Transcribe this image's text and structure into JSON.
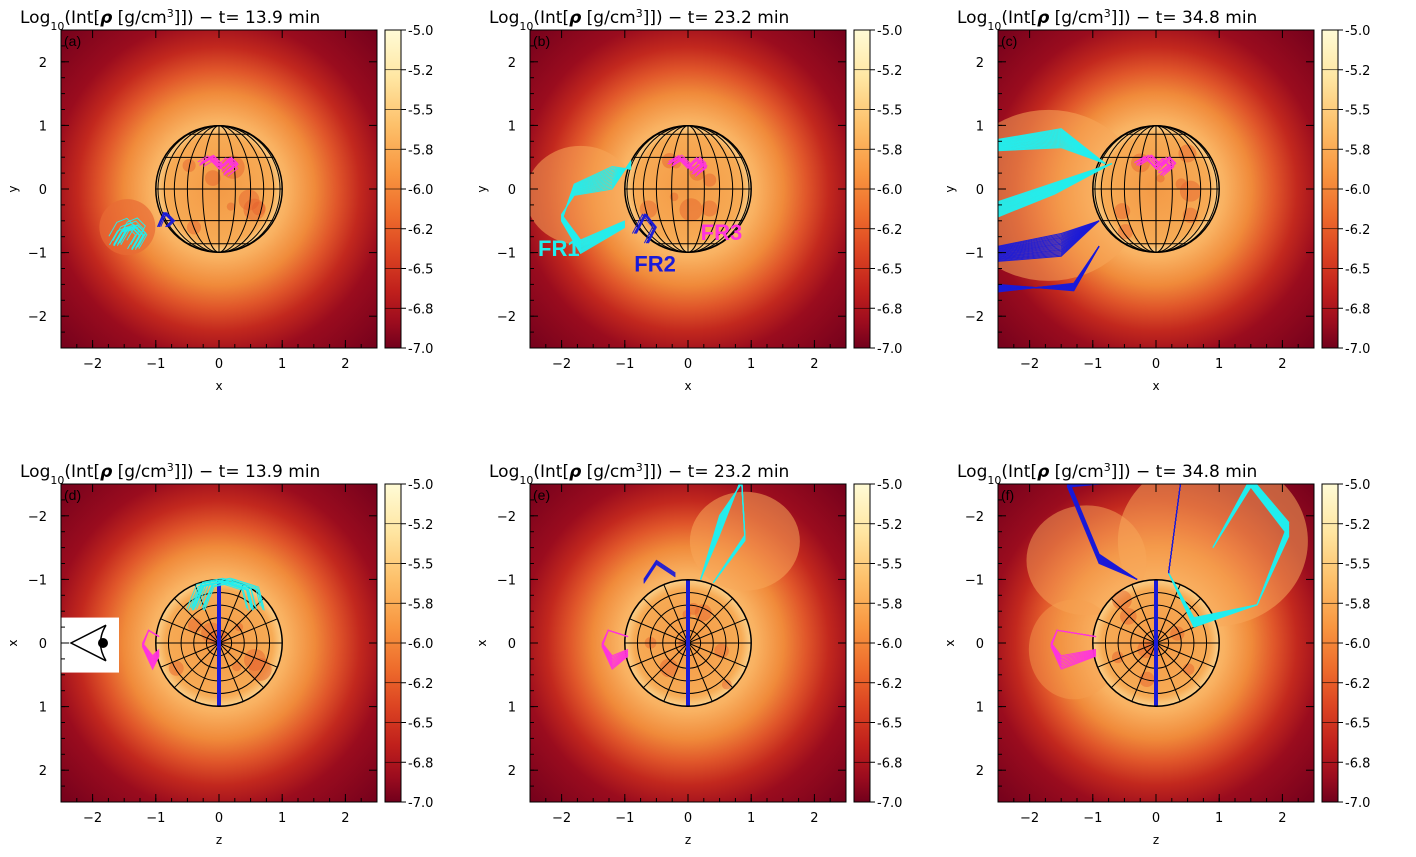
{
  "colorbar": {
    "ticks": [
      "-5.0",
      "-5.2",
      "-5.5",
      "-5.8",
      "-6.0",
      "-6.2",
      "-6.5",
      "-6.8",
      "-7.0"
    ],
    "colors": [
      "#fffbd0",
      "#ffe39a",
      "#fdbd66",
      "#f7963d",
      "#ef6f2c",
      "#e04a22",
      "#c8231c",
      "#a00f1e",
      "#72001c"
    ]
  },
  "axis_ticks": {
    "x": [
      "−2",
      "−1",
      "0",
      "1",
      "2"
    ],
    "y_top": [
      "2",
      "1",
      "0",
      "−1",
      "−2"
    ],
    "y_bottom": [
      "−2",
      "−1",
      "0",
      "1",
      "2"
    ]
  },
  "panels": [
    {
      "label": "(a)",
      "title_time": "13.9",
      "xlabel": "x",
      "ylabel": "y",
      "view": "top",
      "stage": 0
    },
    {
      "label": "(b)",
      "title_time": "23.2",
      "xlabel": "x",
      "ylabel": "y",
      "view": "top",
      "stage": 1
    },
    {
      "label": "(c)",
      "title_time": "34.8",
      "xlabel": "x",
      "ylabel": "y",
      "view": "top",
      "stage": 2
    },
    {
      "label": "(d)",
      "title_time": "13.9",
      "xlabel": "z",
      "ylabel": "x",
      "view": "side",
      "stage": 0
    },
    {
      "label": "(e)",
      "title_time": "23.2",
      "xlabel": "z",
      "ylabel": "x",
      "view": "side",
      "stage": 1
    },
    {
      "label": "(f)",
      "title_time": "34.8",
      "xlabel": "z",
      "ylabel": "x",
      "view": "side",
      "stage": 2
    }
  ],
  "title": {
    "prefix": "Log",
    "sub": "10",
    "mid": "(Int[",
    "rho": "ρ",
    "units": " [g/cm",
    "sup": "3",
    "end": "]]) − t= ",
    "min": " min"
  },
  "flux_ropes": {
    "FR1": {
      "label": "FR1",
      "color": "#22eeee"
    },
    "FR2": {
      "label": "FR2",
      "color": "#1a1ad8"
    },
    "FR3": {
      "label": "FR3",
      "color": "#ff33dd"
    }
  }
}
